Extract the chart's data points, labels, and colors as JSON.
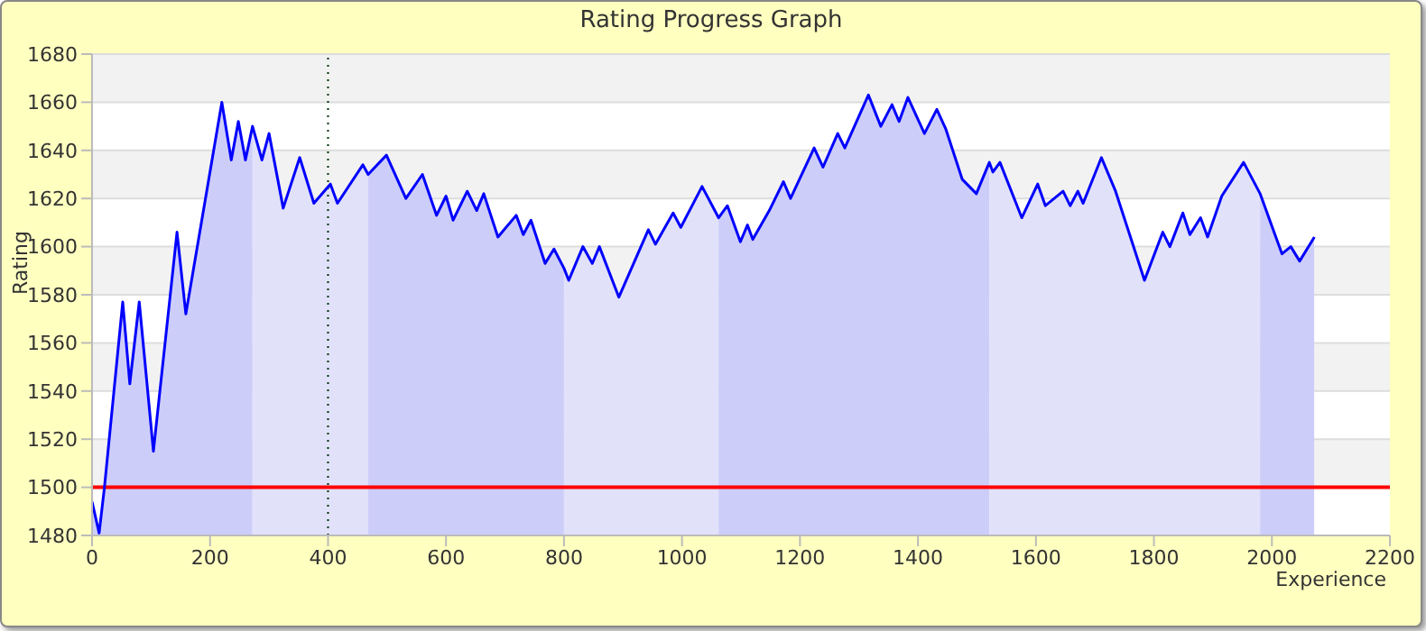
{
  "chart_data": {
    "type": "line",
    "title": "Rating Progress Graph",
    "xlabel": "Experience",
    "ylabel": "Rating",
    "x": [
      0,
      12,
      21,
      52,
      64,
      80,
      104,
      144,
      159,
      220,
      236,
      248,
      260,
      272,
      288,
      300,
      324,
      352,
      376,
      404,
      416,
      459,
      468,
      499,
      532,
      560,
      584,
      600,
      612,
      636,
      652,
      664,
      688,
      719,
      731,
      744,
      768,
      783,
      800,
      808,
      832,
      848,
      860,
      893,
      943,
      955,
      985,
      998,
      1034,
      1062,
      1077,
      1099,
      1111,
      1120,
      1148,
      1172,
      1184,
      1224,
      1239,
      1264,
      1276,
      1316,
      1337,
      1356,
      1368,
      1383,
      1411,
      1432,
      1447,
      1475,
      1499,
      1521,
      1527,
      1539,
      1576,
      1603,
      1616,
      1646,
      1658,
      1671,
      1680,
      1711,
      1735,
      1784,
      1815,
      1827,
      1849,
      1861,
      1879,
      1891,
      1915,
      1952,
      1980,
      2017,
      2032,
      2047,
      2072
    ],
    "series": [
      {
        "color": "#0000ff",
        "values": [
          1494,
          1481,
          1500,
          1577,
          1543,
          1577,
          1515,
          1606,
          1572,
          1660,
          1636,
          1652,
          1636,
          1650,
          1636,
          1647,
          1616,
          1637,
          1618,
          1626,
          1618,
          1634,
          1630,
          1638,
          1620,
          1630,
          1613,
          1621,
          1611,
          1623,
          1615,
          1622,
          1604,
          1613,
          1605,
          1611,
          1593,
          1599,
          1591,
          1586,
          1600,
          1593,
          1600,
          1579,
          1607,
          1601,
          1614,
          1608,
          1625,
          1612,
          1617,
          1602,
          1609,
          1603,
          1615,
          1627,
          1620,
          1641,
          1633,
          1647,
          1641,
          1663,
          1650,
          1659,
          1652,
          1662,
          1647,
          1657,
          1649,
          1628,
          1622,
          1635,
          1631,
          1635,
          1612,
          1626,
          1617,
          1623,
          1617,
          1623,
          1618,
          1637,
          1623,
          1586,
          1606,
          1600,
          1614,
          1605,
          1612,
          1604,
          1621,
          1635,
          1622,
          1597,
          1600,
          1594,
          1604
        ]
      }
    ],
    "xlim": [
      0,
      2200
    ],
    "xticks": [
      0,
      200,
      400,
      600,
      800,
      1000,
      1200,
      1400,
      1600,
      1800,
      2000,
      2200
    ],
    "ylim": [
      1480,
      1680
    ],
    "yticks": [
      1480,
      1500,
      1520,
      1540,
      1560,
      1580,
      1600,
      1620,
      1640,
      1660,
      1680
    ],
    "grid": "y",
    "marker": "none",
    "line_style": "solid",
    "ref_lines": [
      {
        "axis": "y",
        "value": 1500,
        "color": "#ff0000",
        "line_style": "solid"
      },
      {
        "axis": "x",
        "value": 400,
        "color": "#003300",
        "line_style": "dotted"
      }
    ],
    "bands": [
      {
        "axis": "x",
        "from": 0,
        "to": 272,
        "color": "#cdcdfa"
      },
      {
        "axis": "x",
        "from": 272,
        "to": 468,
        "color": "#e1e1fa"
      },
      {
        "axis": "x",
        "from": 468,
        "to": 800,
        "color": "#cdcdfa"
      },
      {
        "axis": "x",
        "from": 800,
        "to": 1062,
        "color": "#e1e1fa"
      },
      {
        "axis": "x",
        "from": 1062,
        "to": 1521,
        "color": "#cdcdfa"
      },
      {
        "axis": "x",
        "from": 1521,
        "to": 1980,
        "color": "#e1e1fa"
      },
      {
        "axis": "x",
        "from": 1980,
        "to": 2072,
        "color": "#cdcdfa"
      }
    ]
  }
}
